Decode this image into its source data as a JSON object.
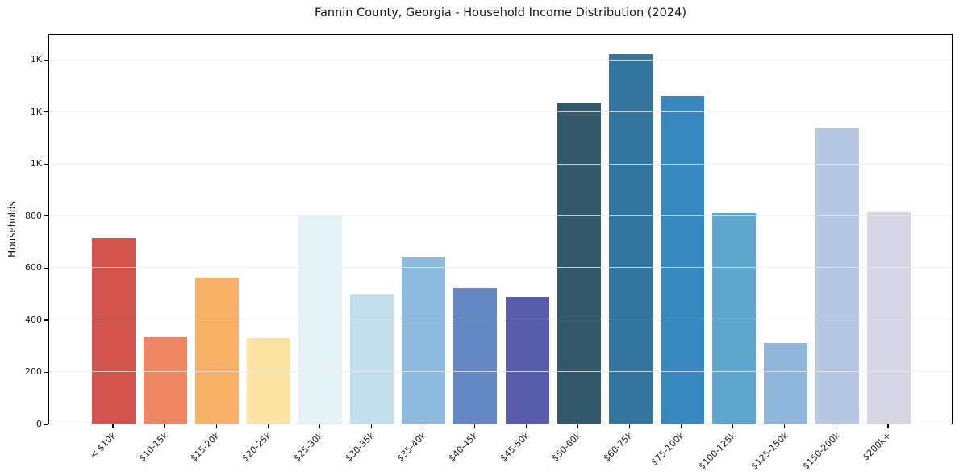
{
  "chart_data": {
    "type": "bar",
    "title": "Fannin County, Georgia - Household Income Distribution (2024)",
    "xlabel": "",
    "ylabel": "Households",
    "categories": [
      "< $10k",
      "$10-15k",
      "$15-20k",
      "$20-25k",
      "$25-30k",
      "$30-35k",
      "$35-40k",
      "$40-45k",
      "$45-50k",
      "$50-60k",
      "$60-75k",
      "$75-100k",
      "$100-125k",
      "$125-150k",
      "$150-200k",
      "$200k+"
    ],
    "values": [
      715,
      333,
      563,
      330,
      803,
      497,
      640,
      523,
      488,
      1237,
      1424,
      1262,
      812,
      311,
      1140,
      816
    ],
    "bar_colors": [
      "#d1544d",
      "#ef8663",
      "#f9b168",
      "#fce3a2",
      "#e4f2f7",
      "#c2e0eb",
      "#8ebade",
      "#6488c4",
      "#585cab",
      "#35596c",
      "#34759d",
      "#3889c0",
      "#5ea6ce",
      "#8fb6da",
      "#b7c8e4",
      "#d7d6e5"
    ],
    "ytick_values": [
      0,
      200,
      400,
      600,
      800,
      1000,
      1200,
      1400
    ],
    "ytick_labels": [
      "0",
      "200",
      "400",
      "600",
      "800",
      "1K",
      "1K",
      "1K"
    ],
    "ylim": [
      0,
      1500
    ],
    "grid": true,
    "legend": false,
    "colors": {
      "background": "#ffffff",
      "spine": "#000000",
      "gridline": "#eaebf0",
      "text": "#111111"
    }
  }
}
